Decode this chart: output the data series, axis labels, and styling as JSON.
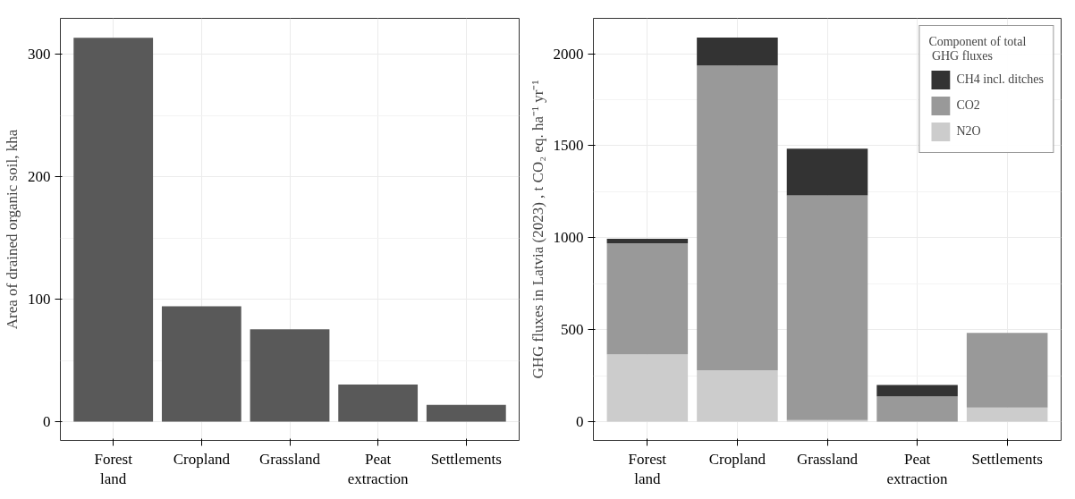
{
  "chart_data": [
    {
      "type": "bar",
      "ylabel": "Area of drained organic soil, kha",
      "categories": [
        "Forest\nland",
        "Cropland",
        "Grassland",
        "Peat\nextraction",
        "Settlements"
      ],
      "values": [
        313.7,
        94.3,
        75.4,
        30.2,
        13.7
      ],
      "color": "#595959",
      "ylim": [
        -15.4,
        329.6
      ],
      "yticks": [
        0,
        100,
        200,
        300
      ],
      "grid": true,
      "legend": false
    },
    {
      "type": "bar",
      "stacked": true,
      "ylabel": "GHG fluxes in Latvia (2023) , t CO₂ eq. ha⁻¹ yr⁻¹",
      "legend_title": "Component of total\n GHG fluxes",
      "categories": [
        "Forest\nland",
        "Cropland",
        "Grassland",
        "Peat\nextraction",
        "Settlements"
      ],
      "series": [
        {
          "name": "N2O",
          "color": "#cccccc",
          "values": [
            366,
            280,
            9,
            null,
            77
          ]
        },
        {
          "name": "CO2",
          "color": "#999999",
          "values": [
            604,
            1656,
            1221,
            137,
            406
          ]
        },
        {
          "name": "CH4 incl. ditches",
          "color": "#333333",
          "values": [
            24,
            152,
            254,
            62,
            0
          ]
        }
      ],
      "ylim": [
        -102,
        2192
      ],
      "yticks": [
        0,
        500,
        1000,
        1500,
        2000
      ],
      "grid": true,
      "legend": "top right"
    }
  ]
}
